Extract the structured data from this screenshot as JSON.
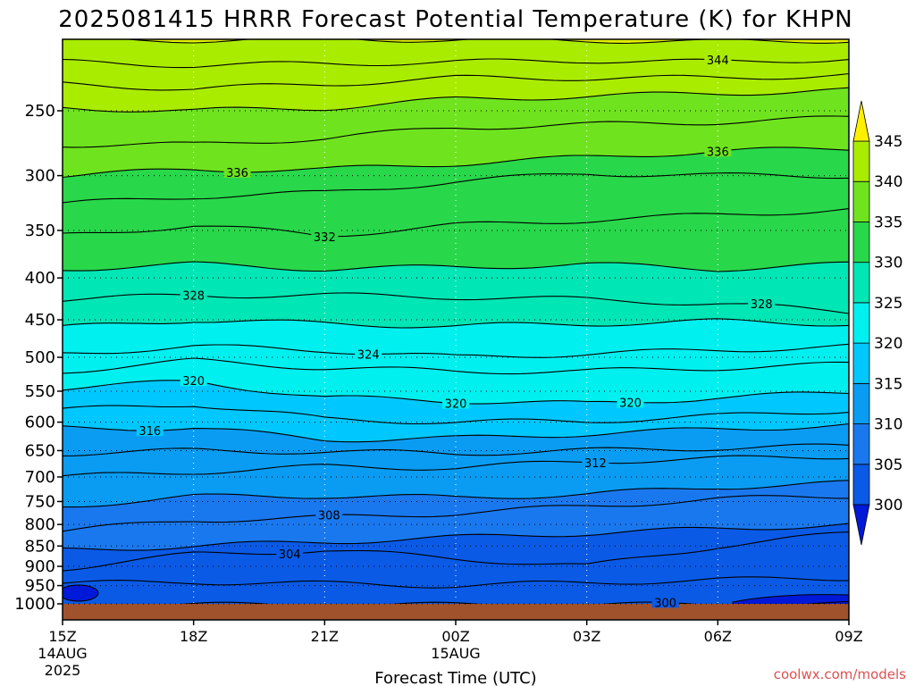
{
  "chart_data": {
    "type": "heatmap",
    "title": "2025081415 HRRR Forecast Potential Temperature (K) for KHPN",
    "xlabel": "Forecast Time (UTC)",
    "ylabel": "",
    "credit": "coolwx.com/models",
    "x_hours": [
      0,
      3,
      6,
      9,
      12,
      15,
      18
    ],
    "x_ticks": [
      {
        "hour": 0,
        "label": "15Z",
        "sub1": "14AUG",
        "sub2": "2025"
      },
      {
        "hour": 3,
        "label": "18Z",
        "sub1": "",
        "sub2": ""
      },
      {
        "hour": 6,
        "label": "21Z",
        "sub1": "",
        "sub2": ""
      },
      {
        "hour": 9,
        "label": "00Z",
        "sub1": "15AUG",
        "sub2": ""
      },
      {
        "hour": 12,
        "label": "03Z",
        "sub1": "",
        "sub2": ""
      },
      {
        "hour": 15,
        "label": "06Z",
        "sub1": "",
        "sub2": ""
      },
      {
        "hour": 18,
        "label": "09Z",
        "sub1": "",
        "sub2": ""
      }
    ],
    "y_pressure_ticks": [
      1000,
      950,
      900,
      850,
      800,
      750,
      700,
      650,
      600,
      550,
      500,
      450,
      400,
      350,
      300,
      250
    ],
    "ylim": [
      1000,
      200
    ],
    "y_scale": "log",
    "colorbar": {
      "ticks": [
        300,
        305,
        310,
        315,
        320,
        325,
        330,
        335,
        340,
        345
      ],
      "colors": [
        "#0018d8",
        "#0a5ae6",
        "#1a78ee",
        "#0a9cf2",
        "#00c8ff",
        "#00f0f0",
        "#00e6b4",
        "#28d84a",
        "#6fe41e",
        "#aaec00",
        "#e6f200",
        "#fff000"
      ],
      "extend": "both"
    },
    "ground_color": "#a0522d",
    "contours": [
      {
        "value": 300,
        "label": "300",
        "label_hour": 13.8,
        "pressures": [
          1003,
          1003,
          1003,
          1003,
          1003,
          1002,
          1001
        ]
      },
      {
        "value": 304,
        "label": "304",
        "label_hour": 5.2,
        "pressures": [
          905,
          870,
          860,
          880,
          900,
          850,
          820
        ]
      },
      {
        "value": 308,
        "label": "308",
        "label_hour": 6.1,
        "pressures": [
          815,
          790,
          785,
          775,
          760,
          745,
          738
        ]
      },
      {
        "value": 312,
        "label": "312",
        "label_hour": 12.2,
        "pressures": [
          700,
          690,
          680,
          682,
          670,
          665,
          660
        ]
      },
      {
        "value": 316,
        "label": "316",
        "label_hour": 2.0,
        "pressures": [
          610,
          610,
          630,
          628,
          620,
          612,
          605
        ]
      },
      {
        "value": 320,
        "label": "320",
        "label_hour": 3.0,
        "pressures": [
          545,
          535,
          560,
          565,
          570,
          560,
          552
        ]
      },
      {
        "value": 320,
        "label": "320",
        "label_hour": 9.0,
        "pressures": [
          545,
          535,
          560,
          565,
          570,
          560,
          552
        ]
      },
      {
        "value": 320,
        "label": "320",
        "label_hour": 13.0,
        "pressures": [
          545,
          535,
          560,
          565,
          570,
          560,
          552
        ]
      },
      {
        "value": 324,
        "label": "324",
        "label_hour": 7.0,
        "pressures": [
          495,
          485,
          490,
          500,
          495,
          490,
          485
        ]
      },
      {
        "value": 328,
        "label": "328",
        "label_hour": 3.0,
        "pressures": [
          425,
          420,
          420,
          422,
          425,
          430,
          440
        ]
      },
      {
        "value": 328,
        "label": "328",
        "label_hour": 16.0,
        "pressures": [
          425,
          420,
          420,
          422,
          425,
          430,
          440
        ]
      },
      {
        "value": 332,
        "label": "332",
        "label_hour": 6.0,
        "pressures": [
          355,
          345,
          355,
          345,
          340,
          335,
          330
        ]
      },
      {
        "value": 336,
        "label": "336",
        "label_hour": 4.0,
        "pressures": [
          300,
          295,
          295,
          290,
          285,
          280,
          278
        ]
      },
      {
        "value": 336,
        "label": "336",
        "label_hour": 15.0,
        "pressures": [
          300,
          295,
          295,
          290,
          285,
          280,
          278
        ]
      },
      {
        "value": 344,
        "label": "344",
        "label_hour": 15.0,
        "pressures": [
          218,
          220,
          219,
          218,
          217,
          218,
          216
        ]
      }
    ],
    "extra_lines": [
      {
        "value": 302,
        "pressures": [
          945,
          940,
          945,
          950,
          942,
          935,
          930
        ]
      },
      {
        "value": 306,
        "pressures": [
          860,
          850,
          840,
          830,
          820,
          810,
          800
        ]
      },
      {
        "value": 310,
        "pressures": [
          760,
          740,
          738,
          742,
          735,
          720,
          712
        ]
      },
      {
        "value": 314,
        "pressures": [
          655,
          650,
          652,
          655,
          650,
          645,
          642
        ]
      },
      {
        "value": 318,
        "pressures": [
          580,
          570,
          595,
          600,
          598,
          590,
          580
        ]
      },
      {
        "value": 322,
        "pressures": [
          520,
          505,
          515,
          520,
          520,
          515,
          510
        ]
      },
      {
        "value": 326,
        "pressures": [
          460,
          450,
          455,
          458,
          455,
          452,
          455
        ]
      },
      {
        "value": 330,
        "pressures": [
          390,
          385,
          390,
          388,
          385,
          390,
          385
        ]
      },
      {
        "value": 334,
        "pressures": [
          325,
          318,
          315,
          305,
          298,
          300,
          300
        ]
      },
      {
        "value": 338,
        "pressures": [
          275,
          275,
          270,
          262,
          260,
          258,
          255
        ]
      },
      {
        "value": 340,
        "pressures": [
          248,
          250,
          248,
          242,
          240,
          238,
          236
        ]
      },
      {
        "value": 342,
        "pressures": [
          232,
          235,
          232,
          228,
          228,
          228,
          226
        ]
      },
      {
        "value": 346,
        "pressures": [
          205,
          205,
          204,
          205,
          205,
          206,
          205
        ]
      }
    ]
  }
}
